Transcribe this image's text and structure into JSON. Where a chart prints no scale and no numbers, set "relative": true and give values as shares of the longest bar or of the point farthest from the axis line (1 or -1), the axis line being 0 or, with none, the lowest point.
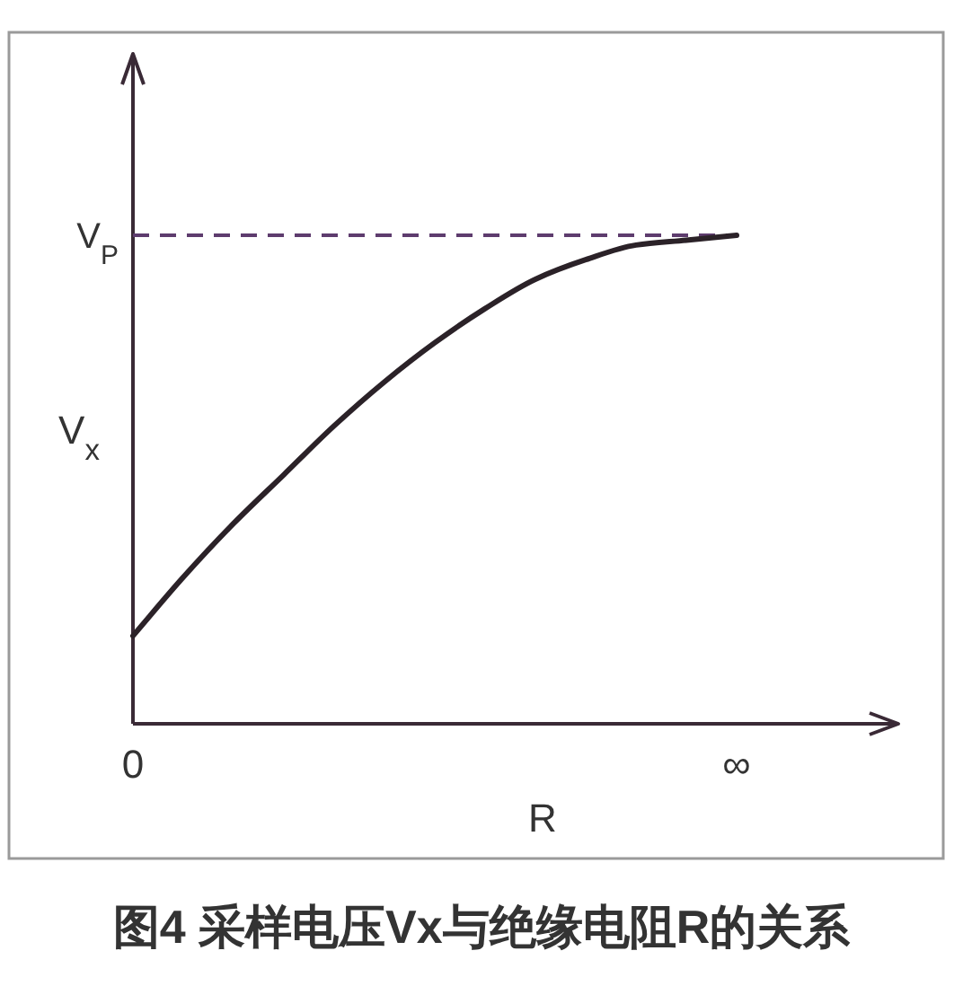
{
  "chart_data": {
    "type": "line",
    "title": "图4 采样电压Vx与绝缘电阻R的关系",
    "xlabel": "R",
    "ylabel": "V$_{x}$",
    "relative": true,
    "categories": [
      "0",
      null,
      null,
      null,
      null,
      null,
      null,
      null,
      null,
      null,
      null,
      null,
      "∞"
    ],
    "series": [
      {
        "color": "#2b2228",
        "values": [
          0.18,
          0.3,
          0.41,
          0.51,
          0.61,
          0.7,
          0.78,
          0.85,
          0.91,
          0.95,
          0.98,
          0.99,
          1.0
        ]
      }
    ],
    "ref_lines": [
      {
        "axis": "y",
        "value": 1,
        "label": "V$_{P}$",
        "color": "#5e3c6e",
        "line_style": "dashed"
      }
    ]
  }
}
